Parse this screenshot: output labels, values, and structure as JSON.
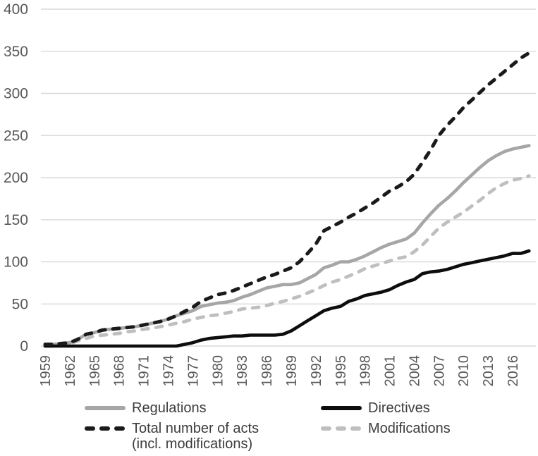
{
  "figure": {
    "background": "#ffffff"
  },
  "chart_data": {
    "type": "line",
    "title": "",
    "xlabel": "",
    "ylabel": "",
    "x_start": 1959,
    "x_end": 2018,
    "x_tick_labels": [
      "1959",
      "1962",
      "1965",
      "1968",
      "1971",
      "1974",
      "1977",
      "1980",
      "1983",
      "1986",
      "1989",
      "1992",
      "1995",
      "1998",
      "2001",
      "2004",
      "2007",
      "2010",
      "2013",
      "2016"
    ],
    "y_ticks": [
      0,
      50,
      100,
      150,
      200,
      250,
      300,
      350,
      400
    ],
    "ylim": [
      0,
      400
    ],
    "grid": "horizontal",
    "legend_position": "bottom",
    "colors": {
      "grid": "#d9d9d9",
      "axis_text": "#595959",
      "legend_text": "#3d3d3d",
      "background": "#ffffff"
    },
    "series": [
      {
        "id": "regulations",
        "name": "Regulations",
        "color": "#a6a6a6",
        "dash": false,
        "width": 4.6,
        "values": [
          2,
          2,
          3,
          4,
          8,
          14,
          16,
          19,
          20,
          21,
          22,
          23,
          25,
          27,
          29,
          32,
          36,
          39,
          42,
          47,
          49,
          51,
          52,
          54,
          58,
          61,
          65,
          69,
          71,
          73,
          73,
          75,
          80,
          85,
          93,
          96,
          100,
          100,
          103,
          107,
          112,
          117,
          121,
          124,
          127,
          134,
          146,
          157,
          167,
          175,
          184,
          194,
          203,
          212,
          220,
          226,
          231,
          234,
          236,
          238
        ]
      },
      {
        "id": "modifications",
        "name": "Modifications",
        "color": "#bfbfbf",
        "dash": true,
        "width": 4.8,
        "values": [
          0,
          0,
          1,
          3,
          6,
          9,
          12,
          13,
          14,
          15,
          17,
          18,
          20,
          21,
          23,
          25,
          27,
          29,
          32,
          34,
          36,
          37,
          39,
          41,
          44,
          45,
          46,
          48,
          51,
          53,
          56,
          59,
          63,
          67,
          72,
          76,
          79,
          83,
          87,
          92,
          95,
          98,
          101,
          104,
          106,
          112,
          120,
          130,
          140,
          147,
          153,
          159,
          166,
          173,
          181,
          188,
          193,
          197,
          199,
          202
        ]
      },
      {
        "id": "directives",
        "name": "Directives",
        "color": "#0d0d0d",
        "dash": false,
        "width": 4.6,
        "values": [
          0,
          0,
          0,
          0,
          0,
          0,
          0,
          0,
          0,
          0,
          0,
          0,
          0,
          0,
          0,
          0,
          0,
          2,
          4,
          7,
          9,
          10,
          11,
          12,
          12,
          13,
          13,
          13,
          13,
          14,
          18,
          24,
          30,
          36,
          42,
          45,
          47,
          53,
          56,
          60,
          62,
          64,
          67,
          72,
          76,
          79,
          86,
          88,
          89,
          91,
          94,
          97,
          99,
          101,
          103,
          105,
          107,
          110,
          110,
          113
        ]
      },
      {
        "id": "total",
        "name": "Total number of acts (incl. modifications)",
        "color": "#1a1a1a",
        "dash": true,
        "width": 5,
        "values": [
          2,
          2,
          3,
          4,
          8,
          14,
          16,
          19,
          20,
          21,
          22,
          23,
          25,
          27,
          29,
          32,
          36,
          41,
          46,
          53,
          57,
          61,
          63,
          66,
          70,
          74,
          78,
          82,
          85,
          89,
          93,
          100,
          110,
          121,
          137,
          142,
          147,
          153,
          158,
          164,
          170,
          177,
          184,
          189,
          195,
          204,
          218,
          233,
          250,
          262,
          272,
          283,
          292,
          301,
          310,
          318,
          326,
          334,
          342,
          348
        ]
      }
    ],
    "legend": [
      {
        "label": "Regulations",
        "series_index": 0
      },
      {
        "label": "Directives",
        "series_index": 2
      },
      {
        "label": "Total number of acts",
        "label2": "(incl. modifications)",
        "series_index": 3
      },
      {
        "label": "Modifications",
        "series_index": 1
      }
    ]
  }
}
